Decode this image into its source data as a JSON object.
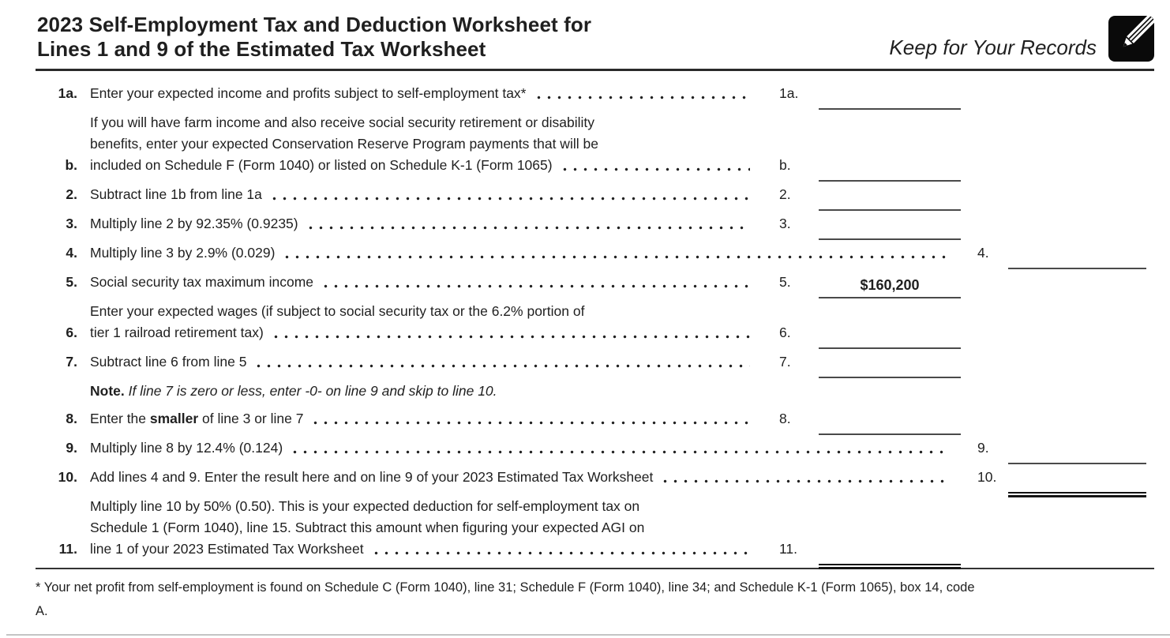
{
  "header": {
    "title_line1": "2023 Self-Employment Tax and Deduction Worksheet for",
    "title_line2": "Lines 1 and 9 of the Estimated Tax Worksheet",
    "keep_label": "Keep for Your Records",
    "pencil_icon": "pencil-icon"
  },
  "colors": {
    "text": "#1f1f1f",
    "header_rule": "#2a2a2a",
    "underline_single": "#4a4a4a",
    "underline_double": "#141414",
    "icon_background": "#0a0a0a",
    "page_edge": "#c4c4c4"
  },
  "worksheet": {
    "rows": [
      {
        "id": "1a",
        "num": "1a.",
        "leader": true,
        "lines": [
          [
            {
              "t": "Enter your expected income and profits subject to self-employment tax*"
            }
          ]
        ],
        "entry": {
          "label": "1a.",
          "col": "inner",
          "value": "",
          "underline": "single"
        }
      },
      {
        "id": "1b",
        "num": "b.",
        "leader": true,
        "lines": [
          [
            {
              "t": "If you will have farm income and also receive social security retirement or disability"
            }
          ],
          [
            {
              "t": "benefits, enter your expected Conservation Reserve Program payments that will be"
            }
          ],
          [
            {
              "t": "included on Schedule F (Form 1040) or listed on Schedule K-1 (Form 1065)"
            }
          ]
        ],
        "entry": {
          "label": "b.",
          "col": "inner",
          "value": "",
          "underline": "single"
        }
      },
      {
        "id": "2",
        "num": "2.",
        "leader": true,
        "lines": [
          [
            {
              "t": "Subtract line 1b from line 1a"
            }
          ]
        ],
        "entry": {
          "label": "2.",
          "col": "inner",
          "value": "",
          "underline": "single"
        }
      },
      {
        "id": "3",
        "num": "3.",
        "leader": true,
        "lines": [
          [
            {
              "t": "Multiply line 2 by 92.35% (0.9235)"
            }
          ]
        ],
        "entry": {
          "label": "3.",
          "col": "inner",
          "value": "",
          "underline": "single"
        }
      },
      {
        "id": "4",
        "num": "4.",
        "leader": true,
        "lines": [
          [
            {
              "t": "Multiply line 3 by 2.9% (0.029)"
            }
          ]
        ],
        "entry": {
          "label": "4.",
          "col": "outer",
          "value": "",
          "underline": "single"
        }
      },
      {
        "id": "5",
        "num": "5.",
        "leader": true,
        "lines": [
          [
            {
              "t": "Social security tax maximum income"
            }
          ]
        ],
        "entry": {
          "label": "5.",
          "col": "inner",
          "value": "$160,200",
          "underline": "single"
        }
      },
      {
        "id": "6",
        "num": "6.",
        "leader": true,
        "lines": [
          [
            {
              "t": "Enter your expected wages (if subject to social security tax or the 6.2% portion of"
            }
          ],
          [
            {
              "t": "tier 1 railroad retirement tax)"
            }
          ]
        ],
        "entry": {
          "label": "6.",
          "col": "inner",
          "value": "",
          "underline": "single"
        }
      },
      {
        "id": "7",
        "num": "7.",
        "leader": true,
        "lines": [
          [
            {
              "t": "Subtract line 6 from line 5"
            }
          ]
        ],
        "entry": {
          "label": "7.",
          "col": "inner",
          "value": "",
          "underline": "single"
        }
      },
      {
        "id": "note",
        "num": "",
        "leader": false,
        "lines": [
          [
            {
              "t": "Note.",
              "s": "b"
            },
            {
              "t": " If line 7 is zero or less, enter -0- on line 9 and skip to line 10.",
              "s": "i"
            }
          ]
        ],
        "entry": null
      },
      {
        "id": "8",
        "num": "8.",
        "leader": true,
        "lines": [
          [
            {
              "t": "Enter the "
            },
            {
              "t": "smaller",
              "s": "b"
            },
            {
              "t": " of line 3 or line 7"
            }
          ]
        ],
        "entry": {
          "label": "8.",
          "col": "inner",
          "value": "",
          "underline": "single"
        }
      },
      {
        "id": "9",
        "num": "9.",
        "leader": true,
        "lines": [
          [
            {
              "t": "Multiply line 8 by 12.4% (0.124)"
            }
          ]
        ],
        "entry": {
          "label": "9.",
          "col": "outer",
          "value": "",
          "underline": "single"
        }
      },
      {
        "id": "10",
        "num": "10.",
        "leader": true,
        "lines": [
          [
            {
              "t": "Add lines 4 and 9. Enter the result here and on line 9 of your 2023 Estimated Tax Worksheet"
            }
          ]
        ],
        "entry": {
          "label": "10.",
          "col": "outer",
          "value": "",
          "underline": "double"
        }
      },
      {
        "id": "11",
        "num": "11.",
        "leader": true,
        "lines": [
          [
            {
              "t": "Multiply line 10 by 50% (0.50). This is your expected deduction for self-employment tax on"
            }
          ],
          [
            {
              "t": "Schedule 1 (Form 1040), line 15. Subtract this amount when figuring your expected AGI on"
            }
          ],
          [
            {
              "t": "line 1 of your 2023 Estimated Tax Worksheet"
            }
          ]
        ],
        "entry": {
          "label": "11.",
          "col": "inner",
          "value": "",
          "underline": "double"
        }
      }
    ]
  },
  "footnote": {
    "line1": "* Your net profit from self-employment is found on Schedule C (Form 1040), line 31; Schedule F (Form 1040), line 34; and Schedule K-1 (Form 1065), box 14, code",
    "line2": "A."
  }
}
